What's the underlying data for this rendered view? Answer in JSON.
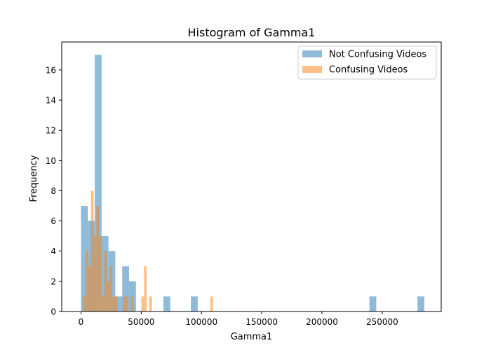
{
  "chart_data": {
    "type": "bar",
    "title": "Histogram of Gamma1",
    "xlabel": "Gamma1",
    "ylabel": "Frequency",
    "xlim": [
      -16000,
      299000
    ],
    "ylim": [
      0,
      17.85
    ],
    "xticks": [
      0,
      50000,
      100000,
      150000,
      200000,
      250000
    ],
    "xtick_labels": [
      "0",
      "50000",
      "100000",
      "150000",
      "200000",
      "250000"
    ],
    "yticks": [
      0,
      2,
      4,
      6,
      8,
      10,
      12,
      14,
      16
    ],
    "ytick_labels": [
      "0",
      "2",
      "4",
      "6",
      "8",
      "10",
      "12",
      "14",
      "16"
    ],
    "grid": false,
    "legend_position": "top-right",
    "series": [
      {
        "name": "Not Confusing Videos",
        "color": "#1f77b4",
        "alpha": 0.5,
        "bin_width": 5700,
        "bins": [
          {
            "x0": 0,
            "count": 7
          },
          {
            "x0": 5700,
            "count": 6
          },
          {
            "x0": 11400,
            "count": 17
          },
          {
            "x0": 17100,
            "count": 5
          },
          {
            "x0": 22800,
            "count": 4
          },
          {
            "x0": 28500,
            "count": 1
          },
          {
            "x0": 34200,
            "count": 3
          },
          {
            "x0": 39900,
            "count": 2
          },
          {
            "x0": 68400,
            "count": 1
          },
          {
            "x0": 91200,
            "count": 1
          },
          {
            "x0": 239400,
            "count": 1
          },
          {
            "x0": 279300,
            "count": 1
          }
        ]
      },
      {
        "name": "Confusing Videos",
        "color": "#ff7f0e",
        "alpha": 0.5,
        "bin_width": 2200,
        "bins": [
          {
            "x0": 1700,
            "count": 1
          },
          {
            "x0": 3900,
            "count": 4
          },
          {
            "x0": 6100,
            "count": 3
          },
          {
            "x0": 8300,
            "count": 8
          },
          {
            "x0": 10500,
            "count": 5
          },
          {
            "x0": 12700,
            "count": 7
          },
          {
            "x0": 14900,
            "count": 5
          },
          {
            "x0": 17100,
            "count": 1
          },
          {
            "x0": 19300,
            "count": 4
          },
          {
            "x0": 21500,
            "count": 2
          },
          {
            "x0": 23700,
            "count": 3
          },
          {
            "x0": 25900,
            "count": 1
          },
          {
            "x0": 28100,
            "count": 1
          },
          {
            "x0": 34700,
            "count": 1
          },
          {
            "x0": 36900,
            "count": 1
          },
          {
            "x0": 41300,
            "count": 1
          },
          {
            "x0": 50100,
            "count": 1
          },
          {
            "x0": 52300,
            "count": 3
          },
          {
            "x0": 56700,
            "count": 1
          },
          {
            "x0": 107300,
            "count": 1
          }
        ]
      }
    ]
  }
}
